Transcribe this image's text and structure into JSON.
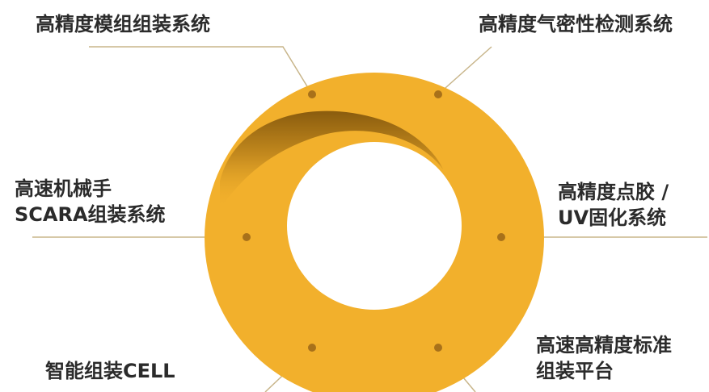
{
  "diagram": {
    "ring_color": "#F2B02C",
    "ring_shadow_color": "#9A6A12",
    "connector_color": "#C8B58A",
    "dot_color": "#A8711A",
    "labels": {
      "top_left": "高精度模组组装系统",
      "top_right": "高精度气密性检测系统",
      "middle_left_1": "高速机械手",
      "middle_left_2": "SCARA组装系统",
      "middle_right_1": "高精度点胶 /",
      "middle_right_2": "UV固化系统",
      "bottom_left": "智能组装CELL",
      "bottom_right_1": "高速高精度标准",
      "bottom_right_2": "组装平台"
    }
  }
}
